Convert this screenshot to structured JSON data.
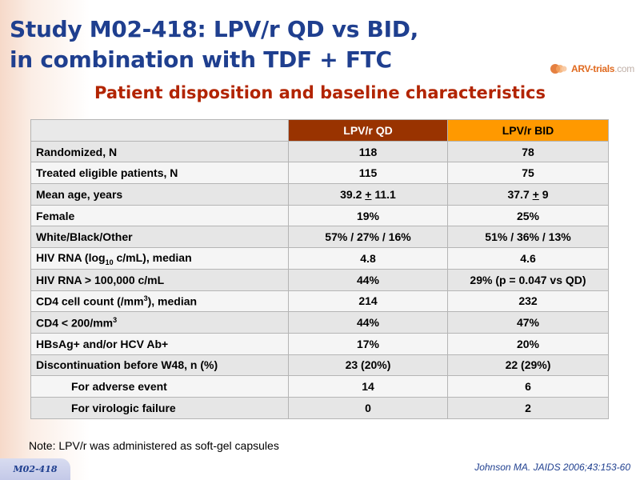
{
  "title": {
    "line1": "Study M02-418: LPV/r QD vs BID,",
    "line2": "in combination with TDF + FTC"
  },
  "logo": {
    "brand": "ARV-",
    "brand2": "trials",
    "suffix": ".com"
  },
  "subtitle": "Patient disposition and baseline characteristics",
  "table": {
    "headers": {
      "empty": "",
      "qd": "LPV/r QD",
      "bid": "LPV/r BID"
    },
    "rows": [
      {
        "label": "Randomized, N",
        "qd": "118",
        "bid": "78"
      },
      {
        "label": "Treated eligible patients, N",
        "qd": "115",
        "bid": "75"
      },
      {
        "label": "Mean age, years",
        "qd_a": "39.2 ",
        "qd_pm": "+",
        "qd_b": " 11.1",
        "bid_a": "37.7 ",
        "bid_pm": "+",
        "bid_b": " 9"
      },
      {
        "label": "Female",
        "qd": "19%",
        "bid": "25%"
      },
      {
        "label": "White/Black/Other",
        "qd": "57% / 27% / 16%",
        "bid": "51% / 36% / 13%"
      },
      {
        "label_a": "HIV RNA (log",
        "label_sub": "10",
        "label_b": " c/mL), median",
        "qd": "4.8",
        "bid": "4.6"
      },
      {
        "label": "HIV RNA > 100,000 c/mL",
        "qd": "44%",
        "bid": "29% (p = 0.047 vs QD)"
      },
      {
        "label_a": "CD4 cell count (/mm",
        "label_sup": "3",
        "label_b": "), median",
        "qd": "214",
        "bid": "232"
      },
      {
        "label_a": "CD4 < 200/mm",
        "label_sup": "3",
        "qd": "44%",
        "bid": "47%"
      },
      {
        "label": "HBsAg+ and/or HCV Ab+",
        "qd": "17%",
        "bid": "20%"
      },
      {
        "label": "Discontinuation before W48, n (%)",
        "qd": "23 (20%)",
        "bid": "22 (29%)"
      },
      {
        "label": "For adverse event",
        "qd": "14",
        "bid": "6"
      },
      {
        "label": "For virologic failure",
        "qd": "0",
        "bid": "2"
      }
    ]
  },
  "note": "Note: LPV/r was administered as soft-gel capsules",
  "badge": "M02-418",
  "reference": "Johnson MA. JAIDS 2006;43:153-60",
  "colors": {
    "title": "#1f3f8f",
    "subtitle": "#b22400",
    "header_qd": "#993300",
    "header_bid": "#ff9900"
  }
}
